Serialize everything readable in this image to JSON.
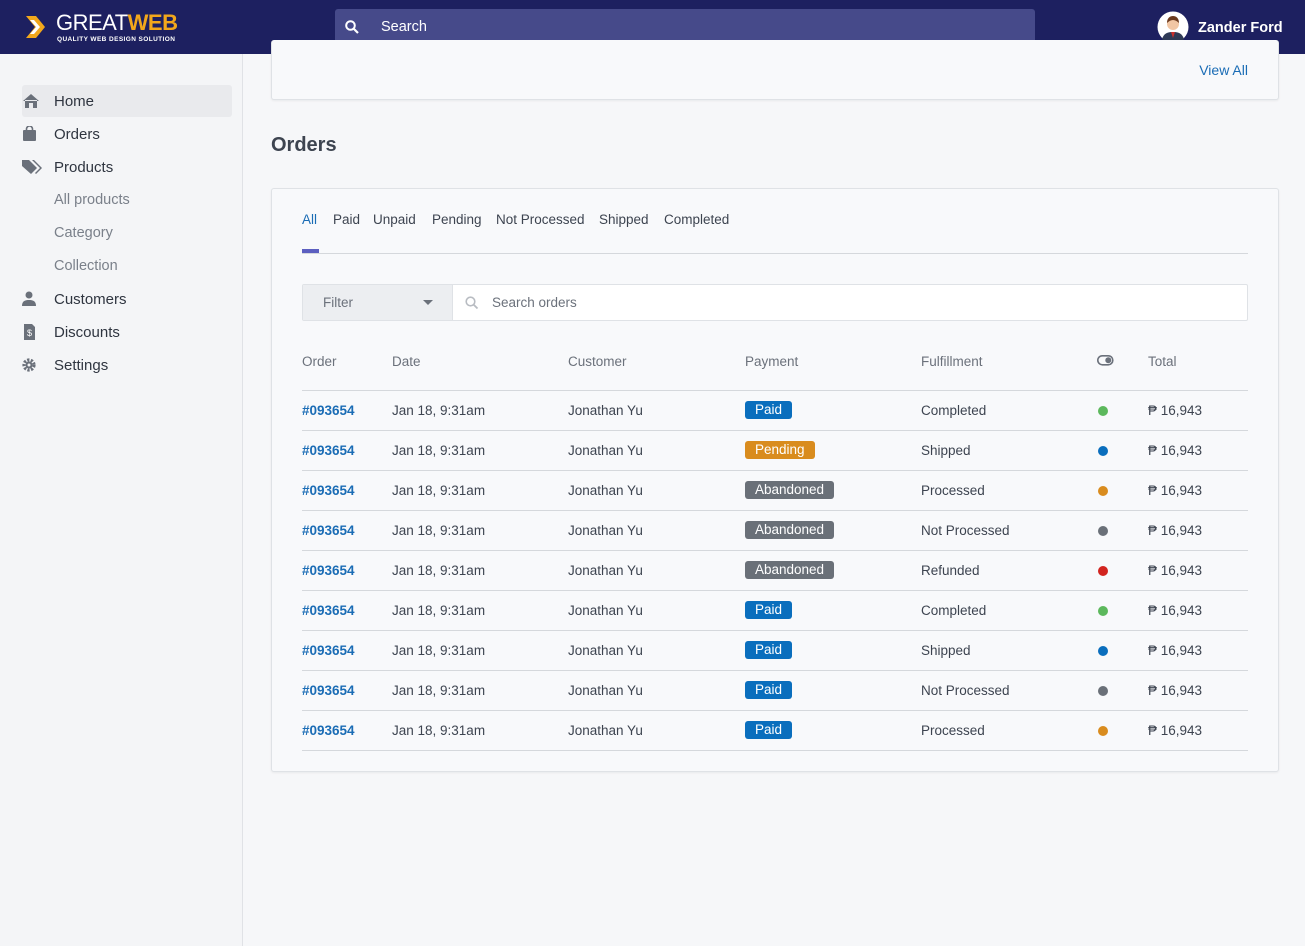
{
  "header": {
    "brand_a": "GREAT",
    "brand_b": "WEB",
    "tagline": "QUALITY WEB DESIGN SOLUTION",
    "search_placeholder": "Search",
    "user": "Zander Ford"
  },
  "sidebar": {
    "home": "Home",
    "orders": "Orders",
    "products": "Products",
    "all_products": "All products",
    "category": "Category",
    "collection": "Collection",
    "customers": "Customers",
    "discounts": "Discounts",
    "settings": "Settings"
  },
  "top_card": {
    "link": "View All"
  },
  "orders": {
    "title": "Orders",
    "tabs": [
      "All",
      "Paid",
      "Unpaid",
      "Pending",
      "Not Processed",
      "Shipped",
      "Completed"
    ],
    "filter": "Filter",
    "search_placeholder": "Search orders",
    "columns": [
      "Order",
      "Date",
      "Customer",
      "Payment",
      "Fulfillment",
      "Total"
    ],
    "rows": [
      {
        "order": "#093654",
        "date": "Jan 18, 9:31am",
        "customer": "Jonathan Yu",
        "payment": "Paid",
        "badge_color": "#0a6ebd",
        "fulfillment": "Completed",
        "dot_color": "#5cb85c",
        "total": "₱ 16,943"
      },
      {
        "order": "#093654",
        "date": "Jan 18, 9:31am",
        "customer": "Jonathan Yu",
        "payment": "Pending",
        "badge_color": "#d98c1e",
        "fulfillment": "Shipped",
        "dot_color": "#0a6ebd",
        "total": "₱ 16,943"
      },
      {
        "order": "#093654",
        "date": "Jan 18, 9:31am",
        "customer": "Jonathan Yu",
        "payment": "Abandoned",
        "badge_color": "#6a7078",
        "fulfillment": "Processed",
        "dot_color": "#d98c1e",
        "total": "₱ 16,943"
      },
      {
        "order": "#093654",
        "date": "Jan 18, 9:31am",
        "customer": "Jonathan Yu",
        "payment": "Abandoned",
        "badge_color": "#6a7078",
        "fulfillment": "Not Processed",
        "dot_color": "#6a7078",
        "total": "₱ 16,943"
      },
      {
        "order": "#093654",
        "date": "Jan 18, 9:31am",
        "customer": "Jonathan Yu",
        "payment": "Abandoned",
        "badge_color": "#6a7078",
        "fulfillment": "Refunded",
        "dot_color": "#d2241f",
        "total": "₱ 16,943"
      },
      {
        "order": "#093654",
        "date": "Jan 18, 9:31am",
        "customer": "Jonathan Yu",
        "payment": "Paid",
        "badge_color": "#0a6ebd",
        "fulfillment": "Completed",
        "dot_color": "#5cb85c",
        "total": "₱ 16,943"
      },
      {
        "order": "#093654",
        "date": "Jan 18, 9:31am",
        "customer": "Jonathan Yu",
        "payment": "Paid",
        "badge_color": "#0a6ebd",
        "fulfillment": "Shipped",
        "dot_color": "#0a6ebd",
        "total": "₱ 16,943"
      },
      {
        "order": "#093654",
        "date": "Jan 18, 9:31am",
        "customer": "Jonathan Yu",
        "payment": "Paid",
        "badge_color": "#0a6ebd",
        "fulfillment": "Not Processed",
        "dot_color": "#6a7078",
        "total": "₱ 16,943"
      },
      {
        "order": "#093654",
        "date": "Jan 18, 9:31am",
        "customer": "Jonathan Yu",
        "payment": "Paid",
        "badge_color": "#0a6ebd",
        "fulfillment": "Processed",
        "dot_color": "#d98c1e",
        "total": "₱ 16,943"
      }
    ]
  }
}
